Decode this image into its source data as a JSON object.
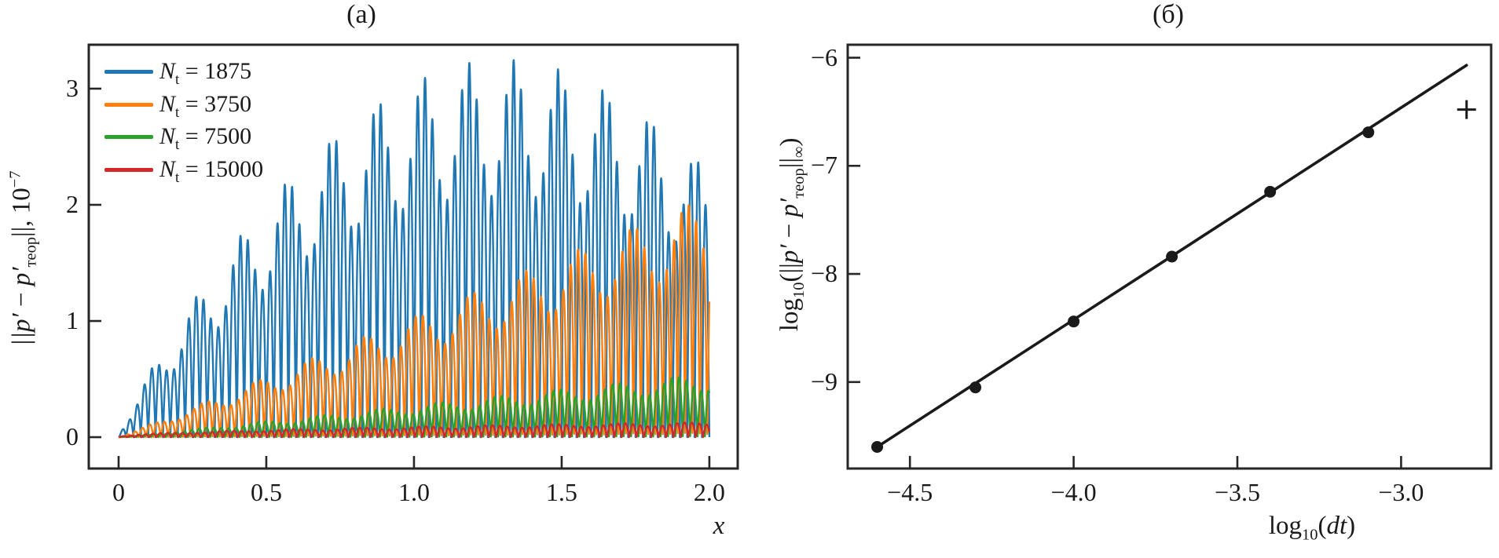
{
  "figure_background": "#ffffff",
  "axis_color": "#262626",
  "chart_data": [
    {
      "type": "line",
      "panel_id": "a",
      "title": "(a)",
      "xlabel": "x",
      "ylabel_parts": {
        "norm_open": "||",
        "p1": "p′",
        "minus": " − ",
        "p2": "p′",
        "sub": "теор",
        "norm_close": "||, 10",
        "sup": "−7"
      },
      "xlim": [
        -0.101,
        2.096
      ],
      "ylim": [
        -0.27,
        3.378
      ],
      "xticks": {
        "values": [
          0,
          0.5,
          1.0,
          1.5,
          2.0
        ],
        "labels": [
          "0",
          "0.5",
          "1.0",
          "1.5",
          "2.0"
        ]
      },
      "yticks": {
        "values": [
          0,
          1,
          2,
          3
        ],
        "labels": [
          "0",
          "1",
          "2",
          "3"
        ]
      },
      "x_range_of_data": [
        0,
        2.0
      ],
      "units_note": "error norm in units of 1e-7, highly oscillatory in x (~80 oscillations over 0..2)",
      "series": [
        {
          "name": "Nt=1875",
          "color": "#1f77b4",
          "legend": {
            "var": "N",
            "sub": "t",
            "eq": " = ",
            "value": "1875"
          },
          "envelope": {
            "shape": "arch",
            "peak": 3.25,
            "period": 2.6,
            "pow": 0.85,
            "peak_x": 1.3,
            "value_at_x2": 2.25
          },
          "beat": {
            "depth": 0.36,
            "freq": 6.5,
            "phase": 0.3
          },
          "cycles_over_range": 80,
          "phase": 0.0
        },
        {
          "name": "Nt=3750",
          "color": "#ff7f0e",
          "legend": {
            "var": "N",
            "sub": "t",
            "eq": " = ",
            "value": "3750"
          },
          "envelope": {
            "shape": "linear",
            "slope": 1.04,
            "value_at_x2": 2.08
          },
          "beat": {
            "depth": 0.3,
            "freq": 5.5,
            "phase": 1.1
          },
          "cycles_over_range": 80,
          "phase": 0.9
        },
        {
          "name": "Nt=7500",
          "color": "#2ca02c",
          "legend": {
            "var": "N",
            "sub": "t",
            "eq": " = ",
            "value": "7500"
          },
          "envelope": {
            "shape": "linear",
            "slope": 0.275,
            "value_at_x2": 0.55
          },
          "beat": {
            "depth": 0.28,
            "freq": 5.0,
            "phase": 2.0
          },
          "cycles_over_range": 80,
          "phase": 1.9
        },
        {
          "name": "Nt=15000",
          "color": "#d62728",
          "legend": {
            "var": "N",
            "sub": "t",
            "eq": " = ",
            "value": "15000"
          },
          "envelope": {
            "shape": "sqrt",
            "scale": 0.13,
            "value_at_x2": 0.13
          },
          "beat": {
            "depth": 0.25,
            "freq": 4.5,
            "phase": 0.6
          },
          "cycles_over_range": 80,
          "phase": 2.7
        }
      ]
    },
    {
      "type": "scatter",
      "panel_id": "b",
      "title": "(б)",
      "xlabel_parts": {
        "word": "log",
        "sub": "10",
        "open": "(",
        "var": "dt",
        "close": ")"
      },
      "ylabel_parts": {
        "word": "log",
        "sub": "10",
        "open": "(||",
        "p1": "p′",
        "minus": " − ",
        "p2": "p′",
        "psub": "теор",
        "norm_close": "||",
        "normsub": "∞",
        "close": ")"
      },
      "xlim": [
        -4.69,
        -2.725
      ],
      "ylim": [
        -9.8,
        -5.88
      ],
      "xticks": {
        "values": [
          -4.5,
          -4.0,
          -3.5,
          -3.0
        ],
        "labels": [
          "−4.5",
          "−4.0",
          "−3.5",
          "−3.0"
        ]
      },
      "yticks": {
        "values": [
          -6,
          -7,
          -8,
          -9
        ],
        "labels": [
          "−6",
          "−7",
          "−8",
          "−9"
        ]
      },
      "points": {
        "marker": "circle",
        "color": "#1a1a1a",
        "x": [
          -4.6,
          -4.3,
          -4.0,
          -3.7,
          -3.4,
          -3.1
        ],
        "y": [
          -9.6,
          -9.05,
          -8.44,
          -7.84,
          -7.24,
          -6.69
        ]
      },
      "extra_point": {
        "marker": "plus",
        "color": "#1a1a1a",
        "x": -2.8,
        "y": -6.48
      },
      "fit_line": {
        "color": "#1a1a1a",
        "x": [
          -4.6,
          -2.8
        ],
        "y": [
          -9.6,
          -6.07
        ],
        "slope_approx": 1.97
      }
    }
  ]
}
